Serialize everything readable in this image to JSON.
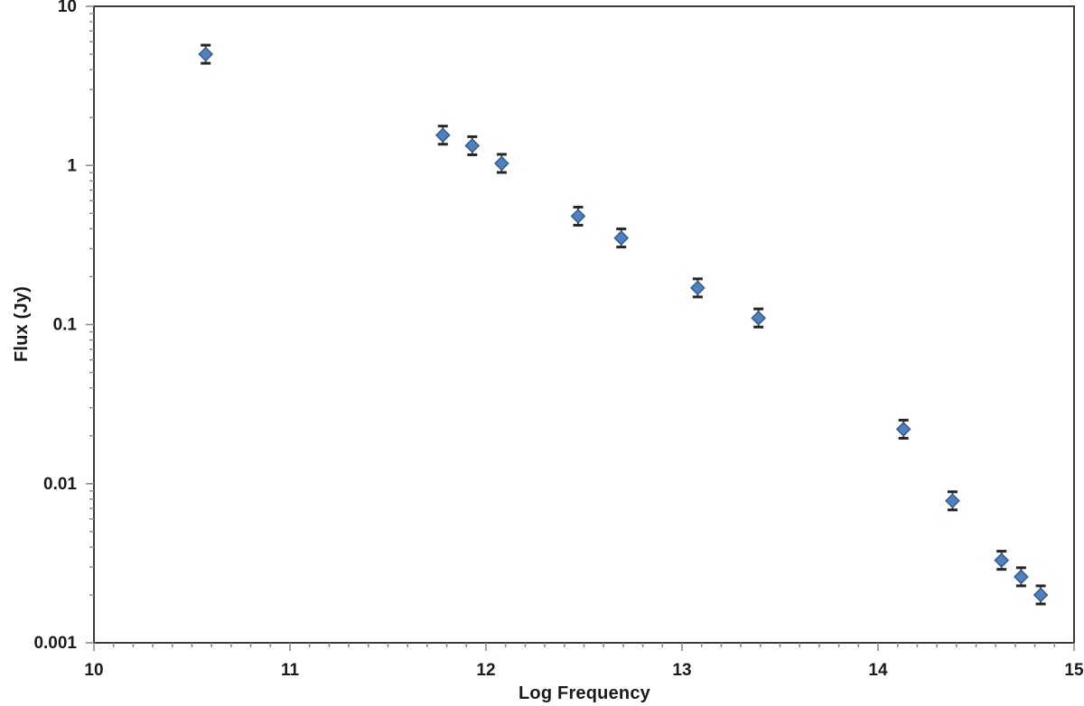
{
  "chart_data": {
    "type": "scatter",
    "title": "",
    "xlabel": "Log Frequency",
    "ylabel": "Flux (Jy)",
    "x_range": [
      10,
      15
    ],
    "y_range": [
      0.001,
      10
    ],
    "y_scale": "log",
    "x_scale": "linear",
    "grid": false,
    "legend": "none",
    "x_ticks": [
      "10",
      "11",
      "12",
      "13",
      "14",
      "15"
    ],
    "x_minor_step": 0.1,
    "y_ticks": [
      "10",
      "1",
      "0.1",
      "0.01",
      "0.001"
    ],
    "y_minor_mantissas": [
      2,
      3,
      4,
      5,
      6,
      7,
      8,
      9
    ],
    "marker": {
      "shape": "diamond",
      "fill": "#4f81bd",
      "stroke": "#36598c",
      "half_size": 7.3
    },
    "error_bar": {
      "rel": 0.14,
      "color": "#262626",
      "cap_half_width": 5.5
    },
    "colors": {
      "border": "#3a3a3a",
      "tick": "#8c8c8c",
      "text": "#1a1a1a",
      "background": "#ffffff"
    },
    "points": [
      {
        "x": 10.57,
        "y": 5.0
      },
      {
        "x": 11.78,
        "y": 1.55
      },
      {
        "x": 11.93,
        "y": 1.33
      },
      {
        "x": 12.08,
        "y": 1.03
      },
      {
        "x": 12.47,
        "y": 0.48
      },
      {
        "x": 12.69,
        "y": 0.35
      },
      {
        "x": 13.08,
        "y": 0.17
      },
      {
        "x": 13.39,
        "y": 0.11
      },
      {
        "x": 14.13,
        "y": 0.022
      },
      {
        "x": 14.38,
        "y": 0.0078
      },
      {
        "x": 14.63,
        "y": 0.0033
      },
      {
        "x": 14.73,
        "y": 0.0026
      },
      {
        "x": 14.83,
        "y": 0.002
      }
    ]
  }
}
